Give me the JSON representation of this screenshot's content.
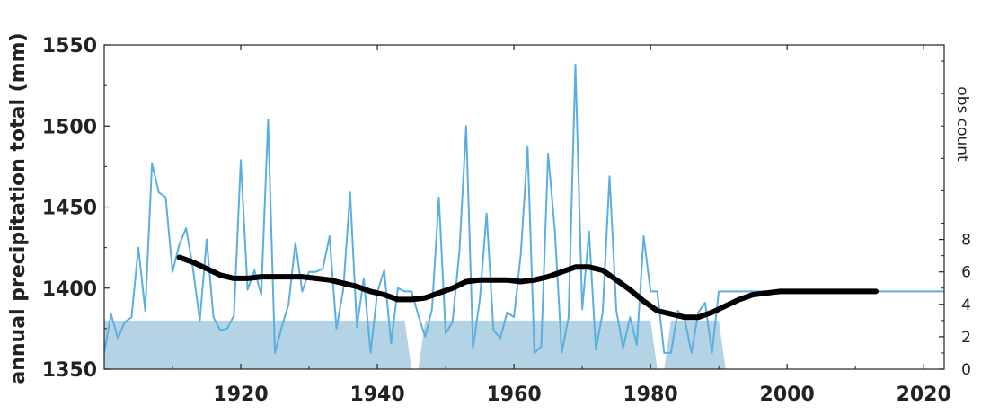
{
  "chart_data": {
    "type": "line",
    "title": "",
    "xlabel": "",
    "ylabel": "annual precipitation total (mm)",
    "y2label": "obs count",
    "xlim": [
      1900,
      2023
    ],
    "ylim": [
      1350,
      1550
    ],
    "y2lim": [
      0,
      20
    ],
    "xticks": [
      1920,
      1940,
      1960,
      1980,
      2000,
      2020
    ],
    "yticks": [
      1350,
      1400,
      1450,
      1500,
      1550
    ],
    "y2ticks": [
      0,
      2,
      4,
      6,
      8
    ],
    "grid": false,
    "colors": {
      "annual": "#5aafe0",
      "smooth": "#000000",
      "obs": "#b4d3e4"
    },
    "series": [
      {
        "kind": "annual",
        "x": [
          1900,
          1901,
          1902,
          1903,
          1904,
          1905,
          1906,
          1907,
          1908,
          1909,
          1910,
          1911,
          1912,
          1913,
          1914,
          1915,
          1916,
          1917,
          1918,
          1919,
          1920,
          1921,
          1922,
          1923,
          1924,
          1925,
          1926,
          1927,
          1928,
          1929,
          1930,
          1931,
          1932,
          1933,
          1934,
          1935,
          1936,
          1937,
          1938,
          1939,
          1940,
          1941,
          1942,
          1943,
          1944,
          1945,
          1946,
          1947,
          1948,
          1949,
          1950,
          1951,
          1952,
          1953,
          1954,
          1955,
          1956,
          1957,
          1958,
          1959,
          1960,
          1961,
          1962,
          1963,
          1964,
          1965,
          1966,
          1967,
          1968,
          1969,
          1970,
          1971,
          1972,
          1973,
          1974,
          1975,
          1976,
          1977,
          1978,
          1979,
          1980,
          1981,
          1982,
          1983,
          1984,
          1985,
          1986,
          1987,
          1988,
          1989,
          1990,
          1991,
          1992,
          1993,
          1994,
          1995,
          1996,
          1997,
          1998,
          1999,
          2000,
          2001,
          2002,
          2003,
          2004,
          2005,
          2006,
          2007,
          2008,
          2009,
          2010,
          2011,
          2012,
          2013,
          2014,
          2015,
          2016,
          2017,
          2018,
          2019,
          2020,
          2021,
          2022,
          2023
        ],
        "y": [
          1360,
          1384,
          1369,
          1379,
          1382,
          1425,
          1386,
          1477,
          1459,
          1456,
          1410,
          1427,
          1437,
          1412,
          1380,
          1430,
          1382,
          1374,
          1375,
          1383,
          1479,
          1399,
          1411,
          1396,
          1504,
          1360,
          1376,
          1390,
          1428,
          1398,
          1410,
          1410,
          1412,
          1432,
          1375,
          1399,
          1459,
          1376,
          1406,
          1360,
          1398,
          1411,
          1366,
          1400,
          1398,
          1398,
          1383,
          1370,
          1387,
          1456,
          1372,
          1379,
          1422,
          1500,
          1363,
          1393,
          1446,
          1374,
          1369,
          1385,
          1382,
          1421,
          1487,
          1360,
          1364,
          1483,
          1435,
          1360,
          1382,
          1538,
          1387,
          1435,
          1362,
          1385,
          1469,
          1386,
          1363,
          1382,
          1365,
          1432,
          1398,
          1398,
          1360,
          1360,
          1386,
          1381,
          1360,
          1385,
          1391,
          1360,
          1398,
          1398,
          1398,
          1398,
          1398,
          1398,
          1398,
          1398,
          1398,
          1398,
          1398,
          1398,
          1398,
          1398,
          1398,
          1398,
          1398,
          1398,
          1398,
          1398,
          1398,
          1398,
          1398,
          1398,
          1398,
          1398,
          1398,
          1398,
          1398,
          1398,
          1398,
          1398,
          1398,
          1398
        ]
      },
      {
        "kind": "smoothed",
        "x": [
          1911,
          1913,
          1915,
          1917,
          1919,
          1921,
          1923,
          1925,
          1927,
          1929,
          1931,
          1933,
          1935,
          1937,
          1939,
          1941,
          1943,
          1945,
          1947,
          1949,
          1951,
          1953,
          1955,
          1957,
          1959,
          1961,
          1963,
          1965,
          1967,
          1969,
          1971,
          1973,
          1975,
          1977,
          1979,
          1981,
          1983,
          1985,
          1987,
          1989,
          1991,
          1993,
          1995,
          1997,
          1999,
          2001,
          2003,
          2005,
          2007,
          2009,
          2011,
          2013
        ],
        "y": [
          1419,
          1416,
          1412,
          1408,
          1406,
          1406,
          1407,
          1407,
          1407,
          1407,
          1406,
          1405,
          1403,
          1401,
          1398,
          1396,
          1393,
          1393,
          1394,
          1397,
          1400,
          1404,
          1405,
          1405,
          1405,
          1404,
          1405,
          1407,
          1410,
          1413,
          1413,
          1411,
          1405,
          1399,
          1392,
          1386,
          1384,
          1382,
          1382,
          1385,
          1389,
          1393,
          1396,
          1397,
          1398,
          1398,
          1398,
          1398,
          1398,
          1398,
          1398,
          1398
        ]
      }
    ],
    "obs_count": {
      "segments": [
        {
          "x": [
            1900,
            1944,
            1945
          ],
          "y": [
            3,
            3,
            0
          ]
        },
        {
          "x": [
            1946,
            1947,
            1980,
            1981
          ],
          "y": [
            0,
            3,
            3,
            0
          ]
        },
        {
          "x": [
            1982,
            1983,
            1990,
            1991
          ],
          "y": [
            0,
            3,
            3,
            0
          ]
        }
      ]
    }
  }
}
